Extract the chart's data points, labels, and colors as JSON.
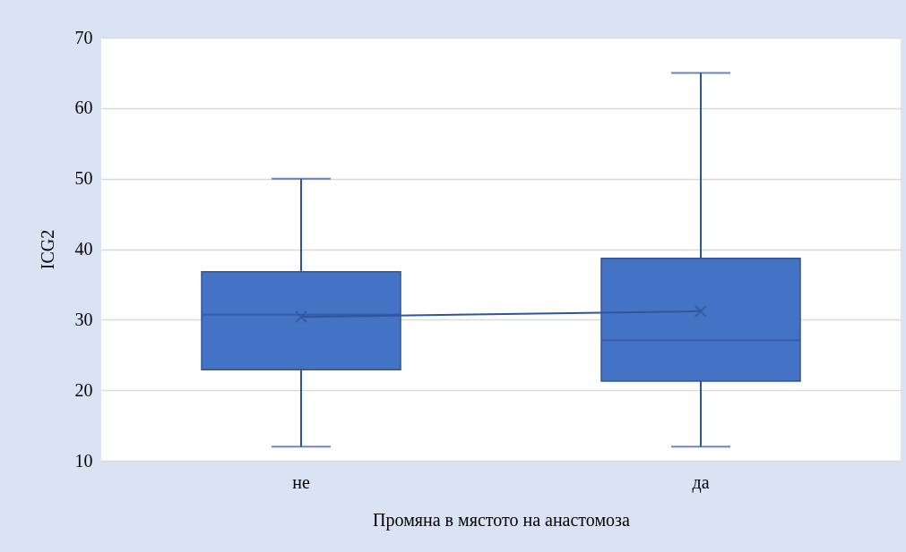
{
  "chart_data": {
    "type": "box",
    "xlabel": "Промяна в мястото на анастомоза",
    "ylabel": "ICG2",
    "categories": [
      "не",
      "да"
    ],
    "series": [
      {
        "color": "#4472c4",
        "boxes": [
          {
            "low": 12,
            "q1": 22.9,
            "median": 30.7,
            "q3": 36.8,
            "high": 50,
            "mean": 30.4
          },
          {
            "low": 12,
            "q1": 21.3,
            "median": 27.1,
            "q3": 38.7,
            "high": 65,
            "mean": 31.2
          }
        ]
      },
      {
        "type": "line",
        "color": "#2f5597",
        "values": [
          30.4,
          31.2
        ]
      }
    ],
    "ylim": [
      10,
      70
    ],
    "yticks": [
      10,
      20,
      30,
      40,
      50,
      60,
      70
    ],
    "grid": "y"
  }
}
